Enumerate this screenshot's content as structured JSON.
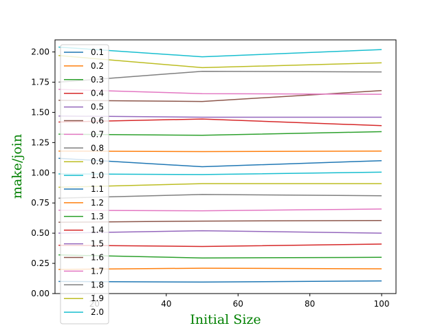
{
  "chart_data": {
    "type": "line",
    "title": "",
    "xlabel": "Initial Size",
    "ylabel": "make/join",
    "xlim": [
      9,
      104
    ],
    "ylim": [
      0.0,
      2.1
    ],
    "x": [
      10,
      50,
      100
    ],
    "xticks": [
      20,
      40,
      60,
      80,
      100
    ],
    "yticks": [
      0.0,
      0.25,
      0.5,
      0.75,
      1.0,
      1.25,
      1.5,
      1.75,
      2.0
    ],
    "ytick_labels": [
      "0.00",
      "0.25",
      "0.50",
      "0.75",
      "1.00",
      "1.25",
      "1.50",
      "1.75",
      "2.00"
    ],
    "grid": false,
    "legend_position": "top-left",
    "label_color": "#008000",
    "series": [
      {
        "name": "0.1",
        "color": "#1f77b4",
        "values": [
          0.1,
          0.095,
          0.105
        ]
      },
      {
        "name": "0.2",
        "color": "#ff7f0e",
        "values": [
          0.2,
          0.21,
          0.205
        ]
      },
      {
        "name": "0.3",
        "color": "#2ca02c",
        "values": [
          0.32,
          0.295,
          0.3
        ]
      },
      {
        "name": "0.4",
        "color": "#d62728",
        "values": [
          0.4,
          0.39,
          0.41
        ]
      },
      {
        "name": "0.5",
        "color": "#9467bd",
        "values": [
          0.5,
          0.52,
          0.5
        ]
      },
      {
        "name": "0.6",
        "color": "#8c564b",
        "values": [
          0.59,
          0.6,
          0.605
        ]
      },
      {
        "name": "0.7",
        "color": "#e377c2",
        "values": [
          0.69,
          0.685,
          0.7
        ]
      },
      {
        "name": "0.8",
        "color": "#7f7f7f",
        "values": [
          0.79,
          0.82,
          0.81
        ]
      },
      {
        "name": "0.9",
        "color": "#bcbd22",
        "values": [
          0.88,
          0.91,
          0.91
        ]
      },
      {
        "name": "1.0",
        "color": "#17becf",
        "values": [
          0.99,
          0.985,
          1.005
        ]
      },
      {
        "name": "1.1",
        "color": "#1f77b4",
        "values": [
          1.12,
          1.05,
          1.1
        ]
      },
      {
        "name": "1.2",
        "color": "#ff7f0e",
        "values": [
          1.18,
          1.175,
          1.18
        ]
      },
      {
        "name": "1.3",
        "color": "#2ca02c",
        "values": [
          1.32,
          1.31,
          1.34
        ]
      },
      {
        "name": "1.4",
        "color": "#d62728",
        "values": [
          1.42,
          1.445,
          1.39
        ]
      },
      {
        "name": "1.5",
        "color": "#9467bd",
        "values": [
          1.47,
          1.46,
          1.46
        ]
      },
      {
        "name": "1.6",
        "color": "#8c564b",
        "values": [
          1.6,
          1.59,
          1.68
        ]
      },
      {
        "name": "1.7",
        "color": "#e377c2",
        "values": [
          1.69,
          1.655,
          1.65
        ]
      },
      {
        "name": "1.8",
        "color": "#7f7f7f",
        "values": [
          1.75,
          1.84,
          1.835
        ]
      },
      {
        "name": "1.9",
        "color": "#bcbd22",
        "values": [
          1.97,
          1.87,
          1.91
        ]
      },
      {
        "name": "2.0",
        "color": "#17becf",
        "values": [
          2.04,
          1.96,
          2.02
        ]
      }
    ]
  }
}
